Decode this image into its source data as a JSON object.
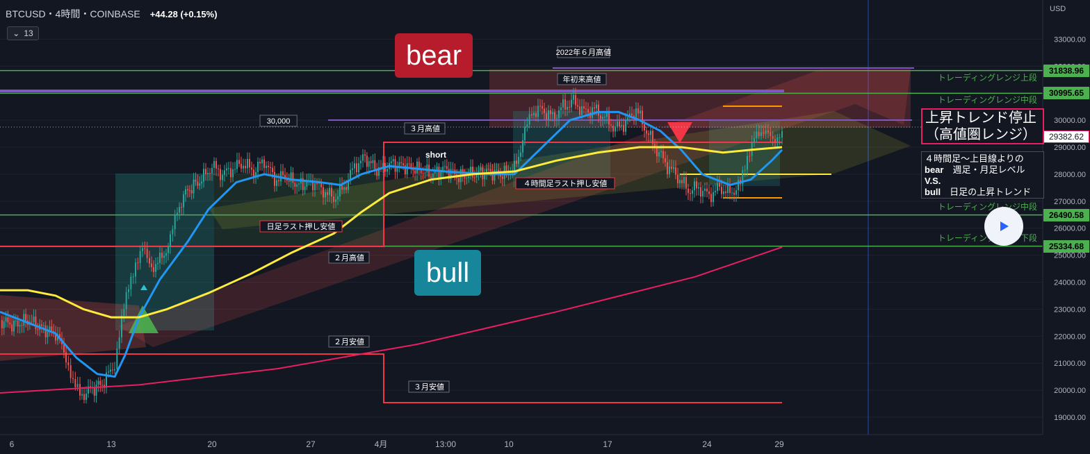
{
  "header": {
    "symbol": "BTCUSD・4時間・COINBASE",
    "change": "+44.28 (+0.15%)",
    "indicator_count": "13"
  },
  "axis": {
    "currency": "USD"
  },
  "colors": {
    "bg": "#131722",
    "green_line": "#4caf50",
    "purple_line": "#7e57c2",
    "red_line": "#f23645",
    "pink_ma": "#e91e63",
    "blue_ma": "#2196f3",
    "yellow_ma": "#ffeb3b",
    "up": "#26a69a",
    "down": "#ef5350"
  },
  "labels": {
    "bear": "bear",
    "bull": "bull",
    "june_high": "2022年６月高値",
    "ytd_high": "年初来高値",
    "march_high": "３月高値",
    "feb_high": "２月高値",
    "feb_low": "２月安値",
    "march_low": "３月安値",
    "daily_last_pullback": "日足ラスト押し安値",
    "h4_last_pullback": "４時間足ラスト押し安値",
    "p30000": "30,000",
    "short": "short",
    "range_upper": "トレーディングレンジ上段",
    "range_mid1": "トレーディングレンジ中段",
    "range_mid2": "トレーディングレンジ中段",
    "range_lower": "トレーディングレンジ下段"
  },
  "note1": {
    "line1": "上昇トレンド停止",
    "line2": "（高値圏レンジ）"
  },
  "note2": {
    "line1": "４時間足〜上目線よりの",
    "line2_k": "bear",
    "line2_v": "週足・月足レベル",
    "line3": "V.S.",
    "line4_k": "bull",
    "line4_v": "日足の上昇トレンド"
  },
  "price_tags": [
    {
      "value": "31838.96",
      "price": 31838.96,
      "style": "green"
    },
    {
      "value": "30995.65",
      "price": 30995.65,
      "style": "green"
    },
    {
      "value": "29382.62",
      "price": 29382.62,
      "style": "cur"
    },
    {
      "value": "26490.58",
      "price": 26490.58,
      "style": "green"
    },
    {
      "value": "25334.68",
      "price": 25334.68,
      "style": "green"
    }
  ],
  "chart_data": {
    "type": "line",
    "title": "BTCUSD・4時間・COINBASE",
    "ylabel": "USD",
    "ylim": [
      18500,
      34000
    ],
    "y_ticks": [
      19000,
      20000,
      21000,
      22000,
      23000,
      24000,
      25000,
      26000,
      27000,
      28000,
      29000,
      30000,
      31000,
      32000,
      33000
    ],
    "x_ticks": [
      "6",
      "13",
      "20",
      "27",
      "4月",
      "13:00",
      "10",
      "17",
      "24",
      "29"
    ],
    "horizontal_levels": [
      31838.96,
      30995.65,
      26490.58,
      25334.68
    ],
    "price_path": [
      [
        0,
        22600
      ],
      [
        20,
        22400
      ],
      [
        40,
        22600
      ],
      [
        60,
        22300
      ],
      [
        80,
        22100
      ],
      [
        95,
        21300
      ],
      [
        105,
        20200
      ],
      [
        115,
        19800
      ],
      [
        130,
        20000
      ],
      [
        150,
        20300
      ],
      [
        165,
        21000
      ],
      [
        175,
        22500
      ],
      [
        185,
        23800
      ],
      [
        195,
        24800
      ],
      [
        205,
        25300
      ],
      [
        215,
        24500
      ],
      [
        230,
        24800
      ],
      [
        245,
        25500
      ],
      [
        255,
        26700
      ],
      [
        270,
        27400
      ],
      [
        290,
        27800
      ],
      [
        305,
        28300
      ],
      [
        320,
        28000
      ],
      [
        335,
        28200
      ],
      [
        350,
        28400
      ],
      [
        365,
        28100
      ],
      [
        380,
        28500
      ],
      [
        395,
        27800
      ],
      [
        410,
        27900
      ],
      [
        430,
        27600
      ],
      [
        450,
        27700
      ],
      [
        465,
        27400
      ],
      [
        480,
        27100
      ],
      [
        495,
        27500
      ],
      [
        510,
        28300
      ],
      [
        525,
        28600
      ],
      [
        545,
        28100
      ],
      [
        560,
        28400
      ],
      [
        580,
        28300
      ],
      [
        600,
        28200
      ],
      [
        620,
        28000
      ],
      [
        640,
        28200
      ],
      [
        660,
        27900
      ],
      [
        680,
        28000
      ],
      [
        700,
        28100
      ],
      [
        720,
        28000
      ],
      [
        740,
        28200
      ],
      [
        755,
        29500
      ],
      [
        765,
        30300
      ],
      [
        780,
        30400
      ],
      [
        795,
        30100
      ],
      [
        810,
        30500
      ],
      [
        825,
        30700
      ],
      [
        840,
        30300
      ],
      [
        855,
        30400
      ],
      [
        870,
        30100
      ],
      [
        885,
        29700
      ],
      [
        900,
        29900
      ],
      [
        915,
        30400
      ],
      [
        930,
        29600
      ],
      [
        945,
        28900
      ],
      [
        960,
        28300
      ],
      [
        975,
        27900
      ],
      [
        990,
        27400
      ],
      [
        1005,
        27500
      ],
      [
        1020,
        27200
      ],
      [
        1035,
        27500
      ],
      [
        1050,
        27300
      ],
      [
        1065,
        27600
      ],
      [
        1075,
        28700
      ],
      [
        1085,
        29500
      ],
      [
        1095,
        29300
      ],
      [
        1105,
        29600
      ],
      [
        1115,
        29400
      ],
      [
        1125,
        29400
      ]
    ],
    "series": [
      {
        "name": "",
        "color": "#2196f3",
        "points": [
          [
            0,
            22900
          ],
          [
            40,
            22500
          ],
          [
            80,
            22100
          ],
          [
            110,
            21200
          ],
          [
            140,
            20600
          ],
          [
            165,
            20500
          ],
          [
            180,
            21300
          ],
          [
            200,
            22700
          ],
          [
            230,
            24100
          ],
          [
            270,
            25500
          ],
          [
            300,
            26700
          ],
          [
            340,
            27700
          ],
          [
            380,
            28000
          ],
          [
            420,
            27800
          ],
          [
            460,
            27700
          ],
          [
            490,
            27600
          ],
          [
            520,
            28000
          ],
          [
            560,
            28300
          ],
          [
            600,
            28200
          ],
          [
            640,
            28100
          ],
          [
            700,
            28000
          ],
          [
            740,
            28000
          ],
          [
            780,
            29000
          ],
          [
            820,
            30000
          ],
          [
            860,
            30300
          ],
          [
            890,
            30300
          ],
          [
            920,
            30000
          ],
          [
            950,
            29600
          ],
          [
            980,
            28900
          ],
          [
            1010,
            28000
          ],
          [
            1050,
            27600
          ],
          [
            1080,
            27800
          ],
          [
            1110,
            28500
          ],
          [
            1125,
            28900
          ]
        ]
      },
      {
        "name": "",
        "color": "#ffeb3b",
        "points": [
          [
            0,
            23700
          ],
          [
            40,
            23700
          ],
          [
            80,
            23500
          ],
          [
            120,
            23000
          ],
          [
            160,
            22700
          ],
          [
            200,
            22700
          ],
          [
            240,
            23000
          ],
          [
            300,
            23600
          ],
          [
            360,
            24300
          ],
          [
            420,
            25100
          ],
          [
            480,
            25800
          ],
          [
            520,
            26600
          ],
          [
            560,
            27300
          ],
          [
            620,
            27800
          ],
          [
            680,
            28000
          ],
          [
            740,
            28100
          ],
          [
            800,
            28500
          ],
          [
            860,
            28800
          ],
          [
            920,
            29000
          ],
          [
            980,
            29000
          ],
          [
            1040,
            28800
          ],
          [
            1080,
            28900
          ],
          [
            1125,
            29000
          ]
        ]
      },
      {
        "name": "",
        "color": "#e91e63",
        "points": [
          [
            0,
            19900
          ],
          [
            200,
            20200
          ],
          [
            400,
            20800
          ],
          [
            600,
            21700
          ],
          [
            800,
            22900
          ],
          [
            1000,
            24200
          ],
          [
            1125,
            25300
          ]
        ]
      }
    ]
  }
}
